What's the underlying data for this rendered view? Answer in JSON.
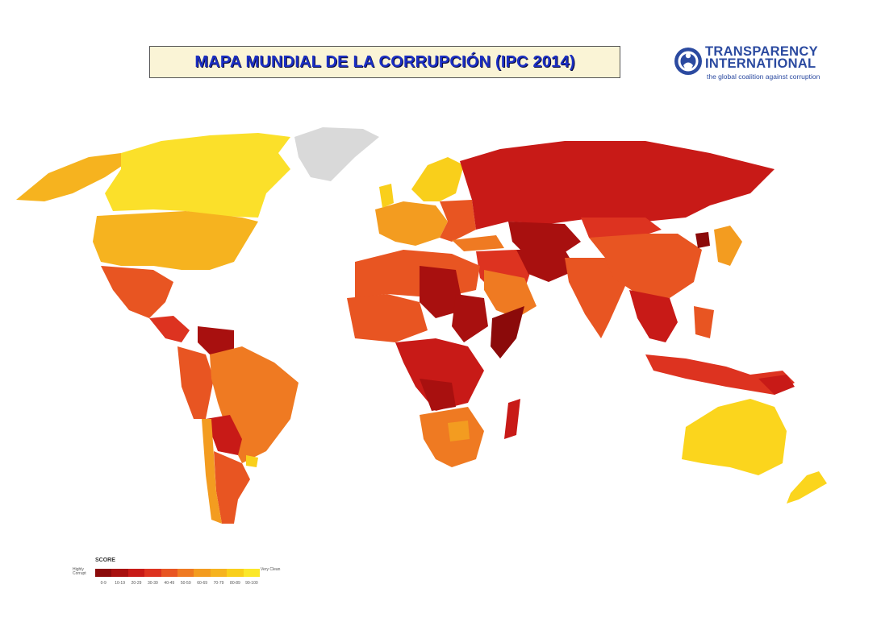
{
  "title": "MAPA MUNDIAL DE LA CORRUPCIÓN  (IPC 2014)",
  "logo": {
    "line1": "TRANSPARENCY",
    "line2": "INTERNATIONAL",
    "tagline": "the global coalition against corruption"
  },
  "legend": {
    "title": "SCORE",
    "low_label": "Highly Corrupt",
    "high_label": "Very Clean",
    "ranges": [
      "0-9",
      "10-19",
      "20-29",
      "30-39",
      "40-49",
      "50-59",
      "60-69",
      "70-79",
      "80-89",
      "90-100"
    ],
    "colors": [
      "#8b0a0a",
      "#a8100f",
      "#c81a17",
      "#dd3320",
      "#e85522",
      "#ef7a22",
      "#f39c20",
      "#f6b31f",
      "#f9cf1b",
      "#fbe82a"
    ]
  },
  "map_colors": {
    "no_data": "#d9d9d9",
    "ocean": "#ffffff"
  }
}
